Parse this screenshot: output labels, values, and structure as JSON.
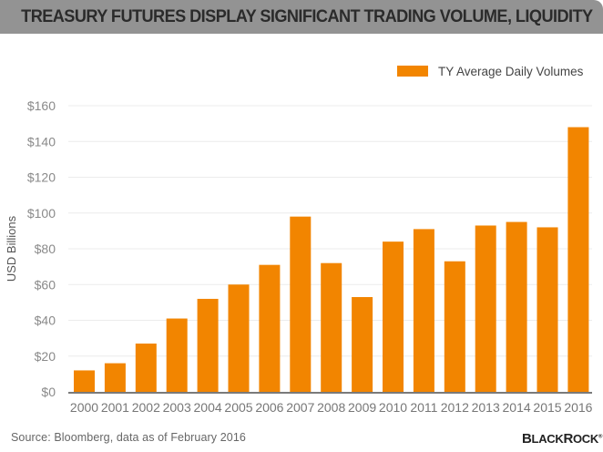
{
  "header": {
    "title": "TREASURY FUTURES DISPLAY SIGNIFICANT TRADING VOLUME, LIQUIDITY"
  },
  "footer": {
    "source": "Source: Bloomberg, data as of February 2016",
    "logo": "BlackRock"
  },
  "colors": {
    "bar": "#f28500",
    "header_bg": "#939393",
    "axis": "#7a7a7a",
    "grid": "#ececec"
  },
  "chart_data": {
    "type": "bar",
    "title": "TREASURY FUTURES DISPLAY SIGNIFICANT TRADING VOLUME, LIQUIDITY",
    "xlabel": "",
    "ylabel": "USD Billions",
    "ylim": [
      0,
      160
    ],
    "yticks": [
      0,
      20,
      40,
      60,
      80,
      100,
      120,
      140,
      160
    ],
    "ytick_labels": [
      "$0",
      "$20",
      "$40",
      "$60",
      "$80",
      "$100",
      "$120",
      "$140",
      "$160"
    ],
    "grid": true,
    "legend": {
      "position": "top-right",
      "entries": [
        "TY Average Daily Volumes"
      ]
    },
    "categories": [
      "2000",
      "2001",
      "2002",
      "2003",
      "2004",
      "2005",
      "2006",
      "2007",
      "2008",
      "2009",
      "2010",
      "2011",
      "2012",
      "2013",
      "2014",
      "2015",
      "2016"
    ],
    "series": [
      {
        "name": "TY Average Daily Volumes",
        "values": [
          12,
          16,
          27,
          41,
          52,
          60,
          71,
          98,
          72,
          53,
          84,
          91,
          73,
          93,
          95,
          92,
          148
        ]
      }
    ]
  }
}
